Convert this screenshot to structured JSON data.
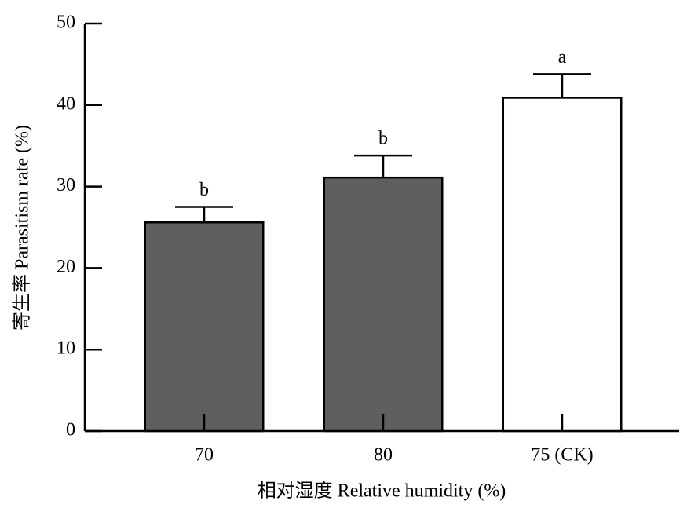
{
  "chart_data": {
    "type": "bar",
    "xlabel": "相对湿度 Relative humidity (%)",
    "ylabel": "寄生率 Parasitism rate (%)",
    "categories": [
      "70",
      "80",
      "75 (CK)"
    ],
    "values": [
      25.6,
      31.1,
      40.9
    ],
    "errors": [
      1.9,
      2.7,
      2.9
    ],
    "letters": [
      "b",
      "b",
      "a"
    ],
    "colors": [
      "#5f5f5f",
      "#5f5f5f",
      "#ffffff"
    ],
    "ylim": [
      0,
      50
    ],
    "yticks": [
      0,
      10,
      20,
      30,
      40,
      50
    ]
  }
}
